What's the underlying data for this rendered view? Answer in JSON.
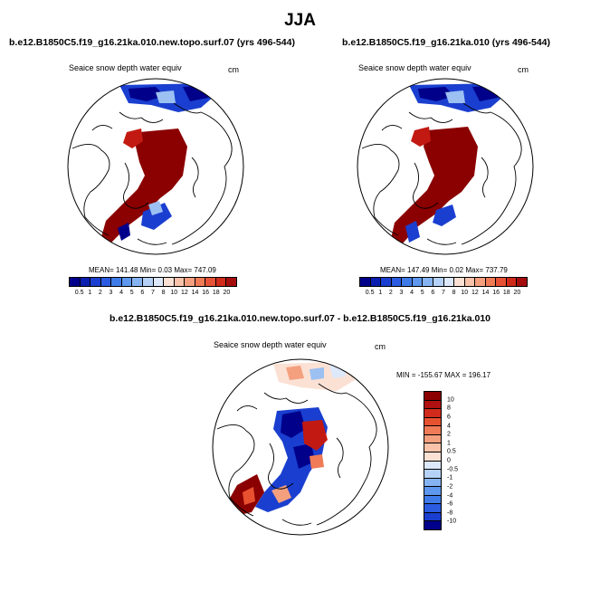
{
  "season_title": "JJA",
  "left_panel": {
    "case_title": "b.e12.B1850C5.f19_g16.21ka.010.new.topo.surf.07 (yrs 496-544)",
    "variable": "Seaice snow depth water equiv",
    "units": "cm",
    "mean_label": "MEAN=",
    "mean": "141.48",
    "min_label": "Min=",
    "min": "0.03",
    "max_label": "Max=",
    "max": "747.09"
  },
  "right_panel": {
    "case_title": "b.e12.B1850C5.f19_g16.21ka.010 (yrs 496-544)",
    "variable": "Seaice snow depth water equiv",
    "units": "cm",
    "mean_label": "MEAN=",
    "mean": "147.49",
    "min_label": "Min=",
    "min": "0.02",
    "max_label": "Max=",
    "max": "737.79"
  },
  "diff_panel": {
    "case_title": "b.e12.B1850C5.f19_g16.21ka.010.new.topo.surf.07 - b.e12.B1850C5.f19_g16.21ka.010",
    "variable": "Seaice snow depth water equiv",
    "units": "cm",
    "minmax_text": "MIN = -155.67 MAX = 196.17"
  },
  "abs_colorbar": {
    "labels": [
      "0.5",
      "1",
      "2",
      "3",
      "4",
      "5",
      "6",
      "7",
      "8",
      "10",
      "12",
      "14",
      "16",
      "18",
      "20"
    ],
    "colors": [
      "#00008b",
      "#0a1fb0",
      "#1a3fd0",
      "#2a5be0",
      "#3f7be8",
      "#5d97ee",
      "#86b4f2",
      "#b5d1f7",
      "#dde8fa",
      "#fbe1d4",
      "#f8c3a9",
      "#f4a07f",
      "#f07b57",
      "#e65235",
      "#d02a1b",
      "#a50d0d"
    ]
  },
  "diff_colorbar": {
    "labels": [
      "10",
      "8",
      "6",
      "4",
      "2",
      "1",
      "0.5",
      "0",
      "-0.5",
      "-1",
      "-2",
      "-4",
      "-6",
      "-8",
      "-10"
    ],
    "colors": [
      "#8b0000",
      "#b01010",
      "#d22a1b",
      "#e8512f",
      "#f07b57",
      "#f4a07f",
      "#f8c3a9",
      "#fbe1d4",
      "#dde8fa",
      "#b5d1f7",
      "#86b4f2",
      "#5d97ee",
      "#3f7be8",
      "#2a5be0",
      "#1a3fd0",
      "#00008b"
    ]
  },
  "map_colors": {
    "dark_red": "#8b0000",
    "red": "#c21a12",
    "dark_blue": "#00008b",
    "blue": "#1a3fd0",
    "light_blue": "#9cc0f2",
    "pale": "#fbe1d4"
  }
}
